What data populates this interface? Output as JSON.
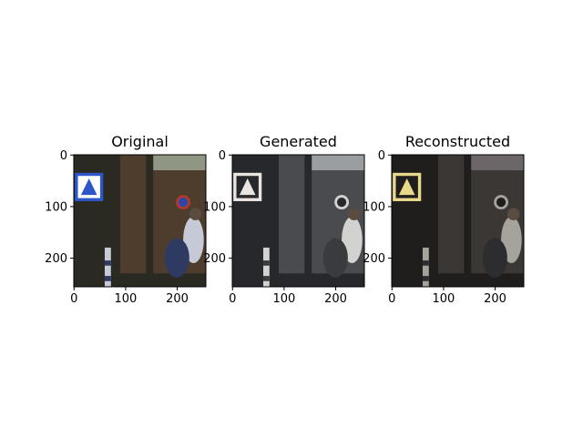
{
  "figure": {
    "panels": [
      {
        "title": "Original",
        "xticks": [
          "0",
          "100",
          "200"
        ],
        "yticks": [
          "0",
          "100",
          "200"
        ],
        "image_description": "street scene: brick building, blue pedestrian-crossing sign, red-ringed no-parking sign, person with backpack, striped post",
        "colors": {
          "sky": "#8f9683",
          "brick": "#4e3d2c",
          "dark": "#2b2a22",
          "sign": "#2d56c9",
          "person": "#c5cad6",
          "bag": "#2f3a63"
        }
      },
      {
        "title": "Generated",
        "xticks": [
          "0",
          "100",
          "200"
        ],
        "yticks": [
          "0",
          "100",
          "200"
        ],
        "image_description": "grayscale-like translated version of the street scene",
        "colors": {
          "sky": "#9b9ea1",
          "brick": "#4a4b4f",
          "dark": "#27282b",
          "sign": "#e9e4df",
          "person": "#d2d2d0",
          "bag": "#3a3b3e"
        }
      },
      {
        "title": "Reconstructed",
        "xticks": [
          "0",
          "100",
          "200"
        ],
        "yticks": [
          "0",
          "100",
          "200"
        ],
        "image_description": "dark reconstructed version of the street scene",
        "colors": {
          "sky": "#6d6669",
          "brick": "#3b3735",
          "dark": "#201e1d",
          "sign": "#e8d98a",
          "person": "#a6a29c",
          "bag": "#2d2c2f"
        }
      }
    ]
  }
}
